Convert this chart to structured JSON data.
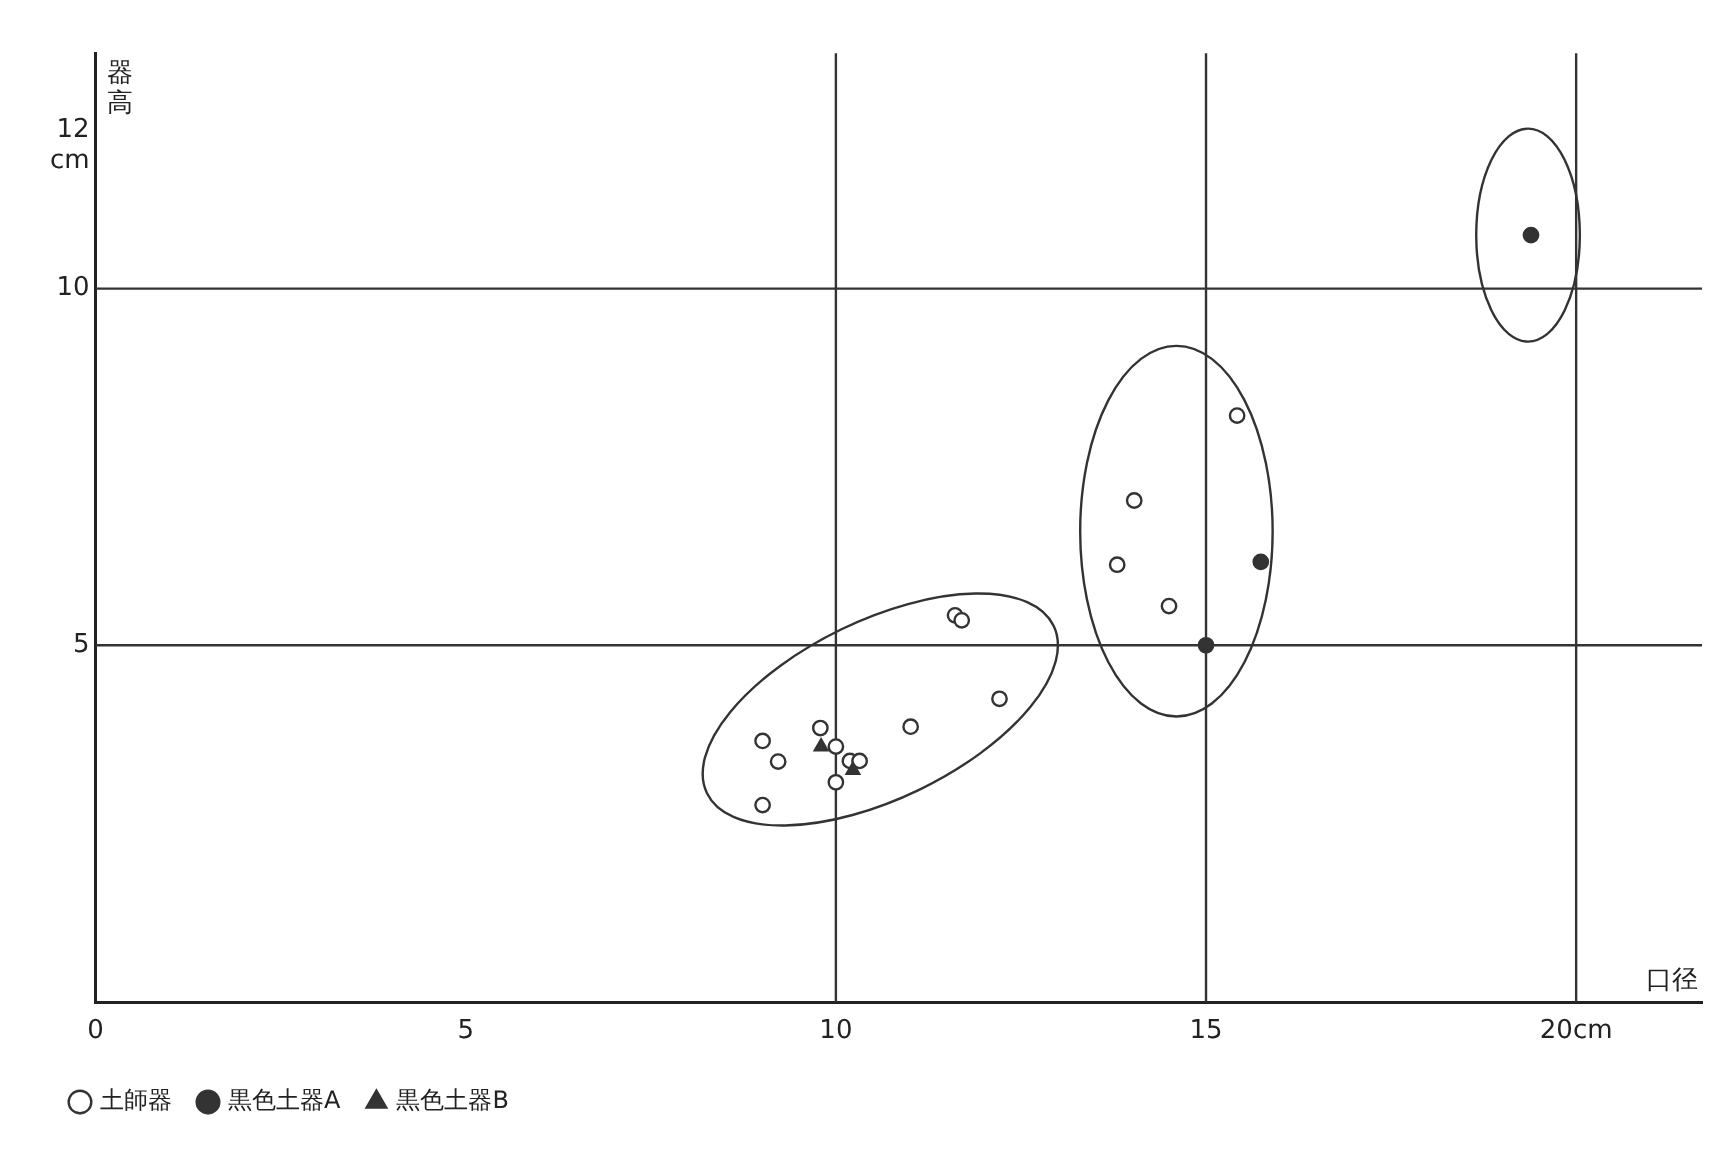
{
  "chart_data": {
    "type": "scatter",
    "xlabel": "口径",
    "ylabel": "器高",
    "xlim": [
      0,
      21.7
    ],
    "ylim": [
      0,
      13.3
    ],
    "xticks": [
      0,
      5,
      10,
      15,
      {
        "value": 20,
        "label": "20cm"
      }
    ],
    "yticks": [
      5,
      10,
      {
        "value": 12,
        "label": "12\ncm"
      }
    ],
    "grid": false,
    "legend": "bottom left",
    "ref_lines": [
      {
        "axis": "x",
        "value": 10
      },
      {
        "axis": "x",
        "value": 15
      },
      {
        "axis": "x",
        "value": 20
      },
      {
        "axis": "y",
        "value": 5
      },
      {
        "axis": "y",
        "value": 10
      }
    ],
    "series": [
      {
        "name": "土師器",
        "color": "#ffffff",
        "marker": "circle",
        "x": [
          11.61,
          11.7,
          12.21,
          11.01,
          9.01,
          9.22,
          9.01,
          9.79,
          10.0,
          10.19,
          10.32,
          10.0,
          15.42,
          14.03,
          13.8,
          14.5
        ],
        "values": [
          5.42,
          5.35,
          4.25,
          3.86,
          3.66,
          3.37,
          2.76,
          3.84,
          3.58,
          3.38,
          3.38,
          3.08,
          8.22,
          7.03,
          6.13,
          5.55
        ]
      },
      {
        "name": "黒色土器A",
        "color": "#333333",
        "marker": "circle",
        "x": [
          15.74,
          15.0,
          19.39
        ],
        "values": [
          6.17,
          5.0,
          10.75
        ]
      },
      {
        "name": "黒色土器B",
        "color": "#333333",
        "marker": "triangle",
        "x": [
          9.8,
          10.23
        ],
        "values": [
          3.58,
          3.25
        ]
      }
    ]
  }
}
